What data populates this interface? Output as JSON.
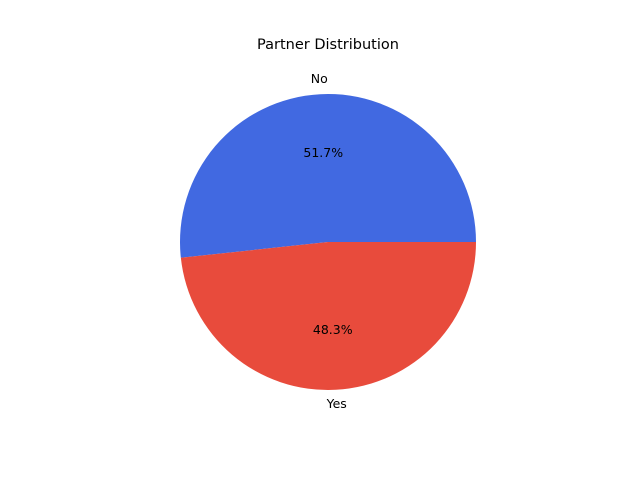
{
  "chart_data": {
    "type": "pie",
    "title": "Partner Distribution",
    "slices": [
      {
        "label": "No",
        "value": 51.7,
        "pct_label": "51.7%",
        "color": "#4169E1"
      },
      {
        "label": "Yes",
        "value": 48.3,
        "pct_label": "48.3%",
        "color": "#E84B3C"
      }
    ],
    "start_angle_deg": 0,
    "direction": "counterclockwise",
    "legend": "none"
  }
}
